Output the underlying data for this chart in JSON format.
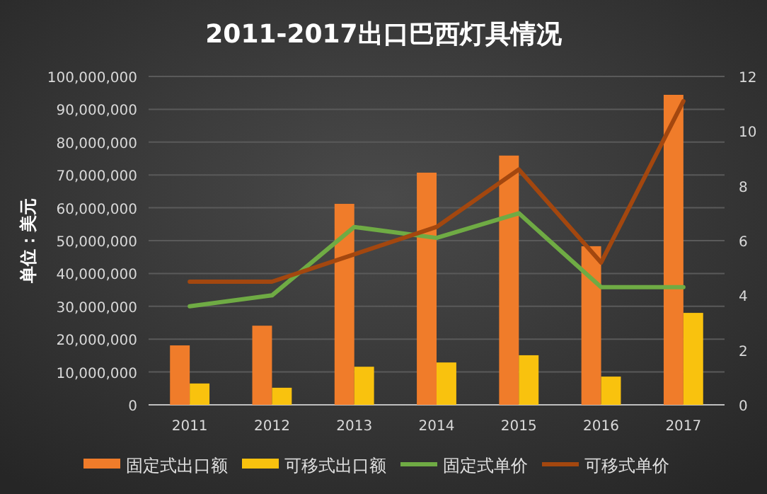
{
  "chart_data": {
    "type": "bar",
    "title": "2011-2017出口巴西灯具情况",
    "ylabel": "单位：美元",
    "categories": [
      "2011",
      "2012",
      "2013",
      "2014",
      "2015",
      "2016",
      "2017"
    ],
    "series": [
      {
        "name": "固定式出口额",
        "color": "#f07c2a",
        "values": [
          18100000,
          24100000,
          61200000,
          70700000,
          75900000,
          48300000,
          94400000
        ]
      },
      {
        "name": "可移式出口额",
        "color": "#f9c20e",
        "values": [
          6500000,
          5200000,
          11600000,
          12900000,
          15100000,
          8600000,
          28000000
        ]
      },
      {
        "name": "固定式单价",
        "type": "line",
        "axis": "y2",
        "color": "#6fab44",
        "values": [
          3.6,
          4.0,
          6.5,
          6.1,
          7.0,
          4.3,
          4.3
        ]
      },
      {
        "name": "可移式单价",
        "type": "line",
        "axis": "y2",
        "color": "#a3470f",
        "values": [
          4.5,
          4.5,
          5.5,
          6.5,
          8.6,
          5.2,
          11.1
        ]
      }
    ],
    "ylim": [
      0,
      100000000
    ],
    "yticks": [
      {
        "value": 0,
        "label": "0"
      },
      {
        "value": 10000000,
        "label": "10,000,000"
      },
      {
        "value": 20000000,
        "label": "20,000,000"
      },
      {
        "value": 30000000,
        "label": "30,000,000"
      },
      {
        "value": 40000000,
        "label": "40,000,000"
      },
      {
        "value": 50000000,
        "label": "50,000,000"
      },
      {
        "value": 60000000,
        "label": "60,000,000"
      },
      {
        "value": 70000000,
        "label": "70,000,000"
      },
      {
        "value": 80000000,
        "label": "80,000,000"
      },
      {
        "value": 90000000,
        "label": "90,000,000"
      },
      {
        "value": 100000000,
        "label": "100,000,000"
      }
    ],
    "y2lim": [
      0,
      12
    ],
    "y2ticks": [
      0,
      2,
      4,
      6,
      8,
      10,
      12
    ],
    "grid": "y",
    "legend": "bottom"
  }
}
